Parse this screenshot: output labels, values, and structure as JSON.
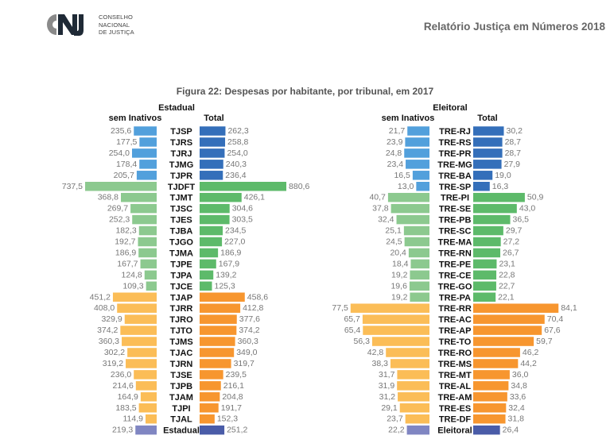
{
  "header": {
    "logo_lines": [
      "CONSELHO",
      "NACIONAL",
      "DE JUSTIÇA"
    ],
    "logo_mark": "CNJ",
    "report_title": "Relatório Justiça em Números 2018"
  },
  "colors": {
    "blue_left": "#52a0dc",
    "blue_right": "#346fba",
    "green_left": "#8cc98f",
    "green_right": "#5dba6a",
    "orange_left": "#fbbd57",
    "orange_right": "#f7962f",
    "total_left": "#8086c2",
    "total_right": "#4a5ca8"
  },
  "chart_data": [
    {
      "type": "bar",
      "orientation": "horizontal-butterfly",
      "title": "Figura 22: Despesas por habitante, por tribunal, em 2017",
      "group_title": "Estadual",
      "left_header": "sem Inativos",
      "right_header": "Total",
      "categories": [
        "TJSP",
        "TJRS",
        "TJRJ",
        "TJMG",
        "TJPR",
        "TJDFT",
        "TJMT",
        "TJSC",
        "TJES",
        "TJBA",
        "TJGO",
        "TJMA",
        "TJPE",
        "TJPA",
        "TJCE",
        "TJAP",
        "TJRR",
        "TJRO",
        "TJTO",
        "TJMS",
        "TJAC",
        "TJRN",
        "TJSE",
        "TJPB",
        "TJAM",
        "TJPI",
        "TJAL",
        "Estadual"
      ],
      "groups": [
        "large",
        "large",
        "large",
        "large",
        "large",
        "medium",
        "medium",
        "medium",
        "medium",
        "medium",
        "medium",
        "medium",
        "medium",
        "medium",
        "medium",
        "small",
        "small",
        "small",
        "small",
        "small",
        "small",
        "small",
        "small",
        "small",
        "small",
        "small",
        "small",
        "total"
      ],
      "series": [
        {
          "name": "sem Inativos",
          "values": [
            235.6,
            177.5,
            254.0,
            178.4,
            205.7,
            737.5,
            368.8,
            269.7,
            252.3,
            182.3,
            192.7,
            186.9,
            167.7,
            124.8,
            109.3,
            451.2,
            408.0,
            329.9,
            374.2,
            360.3,
            302.2,
            319.2,
            236.0,
            214.6,
            164.9,
            183.5,
            114.9,
            219.3
          ]
        },
        {
          "name": "Total",
          "values": [
            262.3,
            258.8,
            254.0,
            240.3,
            236.4,
            880.6,
            426.1,
            304.6,
            303.5,
            234.5,
            227.0,
            186.9,
            167.9,
            139.2,
            125.3,
            458.6,
            412.8,
            377.6,
            374.2,
            360.3,
            349.0,
            319.7,
            239.5,
            216.1,
            204.8,
            191.7,
            152.3,
            251.2
          ]
        }
      ],
      "value_labels": {
        "left": [
          "235,6",
          "177,5",
          "254,0",
          "178,4",
          "205,7",
          "737,5",
          "368,8",
          "269,7",
          "252,3",
          "182,3",
          "192,7",
          "186,9",
          "167,7",
          "124,8",
          "109,3",
          "451,2",
          "408,0",
          "329,9",
          "374,2",
          "360,3",
          "302,2",
          "319,2",
          "236,0",
          "214,6",
          "164,9",
          "183,5",
          "114,9",
          "219,3"
        ],
        "right": [
          "262,3",
          "258,8",
          "254,0",
          "240,3",
          "236,4",
          "880,6",
          "426,1",
          "304,6",
          "303,5",
          "234,5",
          "227,0",
          "186,9",
          "167,9",
          "139,2",
          "125,3",
          "458,6",
          "412,8",
          "377,6",
          "374,2",
          "360,3",
          "349,0",
          "319,7",
          "239,5",
          "216,1",
          "204,8",
          "191,7",
          "152,3",
          "251,2"
        ]
      },
      "grid": false
    },
    {
      "type": "bar",
      "orientation": "horizontal-butterfly",
      "group_title": "Eleitoral",
      "left_header": "sem Inativos",
      "right_header": "Total",
      "categories": [
        "TRE-RJ",
        "TRE-RS",
        "TRE-PR",
        "TRE-MG",
        "TRE-BA",
        "TRE-SP",
        "TRE-PI",
        "TRE-SE",
        "TRE-PB",
        "TRE-SC",
        "TRE-MA",
        "TRE-RN",
        "TRE-PE",
        "TRE-CE",
        "TRE-GO",
        "TRE-PA",
        "TRE-RR",
        "TRE-AC",
        "TRE-AP",
        "TRE-TO",
        "TRE-RO",
        "TRE-MS",
        "TRE-MT",
        "TRE-AL",
        "TRE-AM",
        "TRE-ES",
        "TRE-DF",
        "Eleitoral"
      ],
      "groups": [
        "large",
        "large",
        "large",
        "large",
        "large",
        "large",
        "medium",
        "medium",
        "medium",
        "medium",
        "medium",
        "medium",
        "medium",
        "medium",
        "medium",
        "medium",
        "small",
        "small",
        "small",
        "small",
        "small",
        "small",
        "small",
        "small",
        "small",
        "small",
        "small",
        "total"
      ],
      "series": [
        {
          "name": "sem Inativos",
          "values": [
            21.7,
            23.9,
            24.8,
            23.4,
            16.5,
            13.0,
            40.7,
            37.8,
            32.4,
            25.1,
            24.5,
            20.4,
            18.4,
            19.2,
            19.6,
            19.2,
            77.5,
            65.7,
            65.4,
            56.3,
            42.8,
            38.3,
            31.7,
            31.9,
            31.2,
            29.1,
            23.7,
            22.2
          ]
        },
        {
          "name": "Total",
          "values": [
            30.2,
            28.7,
            28.7,
            27.9,
            19.0,
            16.3,
            50.9,
            43.0,
            36.5,
            29.7,
            27.2,
            26.7,
            23.1,
            22.8,
            22.7,
            22.1,
            84.1,
            70.4,
            67.6,
            59.7,
            46.2,
            44.2,
            36.0,
            34.8,
            33.6,
            32.4,
            31.8,
            26.4
          ]
        }
      ],
      "value_labels": {
        "left": [
          "21,7",
          "23,9",
          "24,8",
          "23,4",
          "16,5",
          "13,0",
          "40,7",
          "37,8",
          "32,4",
          "25,1",
          "24,5",
          "20,4",
          "18,4",
          "19,2",
          "19,6",
          "19,2",
          "77,5",
          "65,7",
          "65,4",
          "56,3",
          "42,8",
          "38,3",
          "31,7",
          "31,9",
          "31,2",
          "29,1",
          "23,7",
          "22,2"
        ],
        "right": [
          "30,2",
          "28,7",
          "28,7",
          "27,9",
          "19,0",
          "16,3",
          "50,9",
          "43,0",
          "36,5",
          "29,7",
          "27,2",
          "26,7",
          "23,1",
          "22,8",
          "22,7",
          "22,1",
          "84,1",
          "70,4",
          "67,6",
          "59,7",
          "46,2",
          "44,2",
          "36,0",
          "34,8",
          "33,6",
          "32,4",
          "31,8",
          "26,4"
        ]
      },
      "grid": false
    }
  ]
}
